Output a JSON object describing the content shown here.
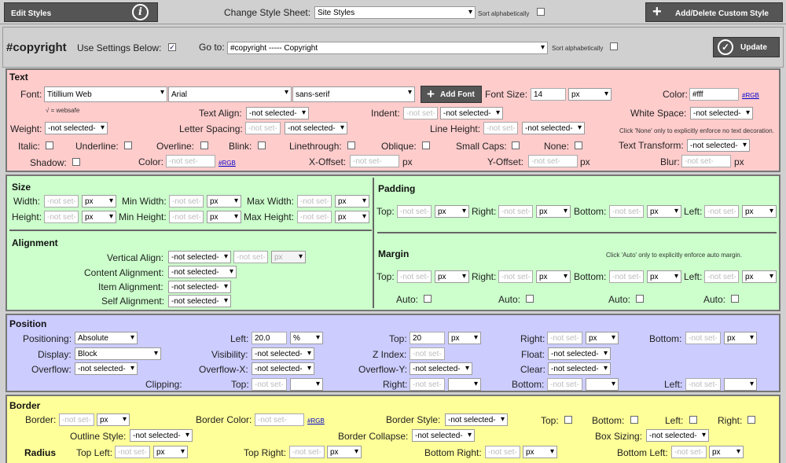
{
  "topbar": {
    "edit_styles": "Edit Styles",
    "change_style_sheet": "Change Style Sheet:",
    "sheet_value": "Site Styles",
    "sort_alpha": "Sort alphabetically",
    "add_delete": "Add/Delete Custom Style"
  },
  "header": {
    "selector": "#copyright",
    "use_settings": "Use Settings Below:",
    "goto": "Go to:",
    "goto_value": "#copyright ----- Copyright",
    "sort_alpha": "Sort alphabetically",
    "update": "Update"
  },
  "text": {
    "title": "Text",
    "font_label": "Font:",
    "font1": "Titillium Web",
    "font2": "Arial",
    "font3": "sans-serif",
    "websafe": "√ = websafe",
    "add_font": "Add Font",
    "font_size_label": "Font Size:",
    "font_size": "14",
    "font_size_unit": "px",
    "color_label": "Color:",
    "color": "#fff",
    "rgb": "#RGB",
    "text_align": "Text Align:",
    "indent": "Indent:",
    "white_space": "White Space:",
    "weight": "Weight:",
    "letter_spacing": "Letter Spacing:",
    "line_height": "Line Height:",
    "none_note": "Click 'None' only to explicitly enforce no text decoration.",
    "italic": "Italic:",
    "underline": "Underline:",
    "overline": "Overline:",
    "blink": "Blink:",
    "linethrough": "Linethrough:",
    "oblique": "Oblique:",
    "small_caps": "Small Caps:",
    "none": "None:",
    "text_transform": "Text Transform:",
    "shadow": "Shadow:",
    "shadow_color": "Color:",
    "x_offset": "X-Offset:",
    "y_offset": "Y-Offset:",
    "blur": "Blur:"
  },
  "common": {
    "not_selected": "-not selected-",
    "not_set": "-not set-",
    "px": "px",
    "rgb": "#RGB"
  },
  "size": {
    "title": "Size",
    "width": "Width:",
    "min_width": "Min Width:",
    "max_width": "Max Width:",
    "height": "Height:",
    "min_height": "Min Height:",
    "max_height": "Max Height:"
  },
  "alignment": {
    "title": "Alignment",
    "vertical": "Vertical Align:",
    "content": "Content Alignment:",
    "item": "Item Alignment:",
    "self": "Self Alignment:"
  },
  "padding": {
    "title": "Padding",
    "top": "Top:",
    "right": "Right:",
    "bottom": "Bottom:",
    "left": "Left:"
  },
  "margin": {
    "title": "Margin",
    "note": "Click 'Auto' only to explicitly enforce auto margin.",
    "top": "Top:",
    "right": "Right:",
    "bottom": "Bottom:",
    "left": "Left:",
    "auto": "Auto:"
  },
  "position": {
    "title": "Position",
    "positioning": "Positioning:",
    "positioning_value": "Absolute",
    "left": "Left:",
    "left_value": "20.0",
    "left_unit": "%",
    "top": "Top:",
    "top_value": "20",
    "right": "Right:",
    "bottom": "Bottom:",
    "display": "Display:",
    "display_value": "Block",
    "visibility": "Visibility:",
    "zindex": "Z Index:",
    "float": "Float:",
    "overflow": "Overflow:",
    "overflow_x": "Overflow-X:",
    "overflow_y": "Overflow-Y:",
    "clear": "Clear:",
    "clipping": "Clipping:",
    "clip_top": "Top:",
    "clip_right": "Right:",
    "clip_bottom": "Bottom:",
    "clip_left": "Left:"
  },
  "border": {
    "title": "Border",
    "border": "Border:",
    "border_color": "Border Color:",
    "border_style": "Border Style:",
    "top": "Top:",
    "bottom": "Bottom:",
    "left": "Left:",
    "right": "Right:",
    "outline_style": "Outline Style:",
    "border_collapse": "Border Collapse:",
    "box_sizing": "Box Sizing:",
    "radius": "Radius",
    "top_left": "Top Left:",
    "top_right": "Top Right:",
    "bottom_right": "Bottom Right:",
    "bottom_left": "Bottom Left:"
  },
  "colors": {
    "text_bg": "#ffcccc",
    "layout_bg": "#ccffcc",
    "position_bg": "#ccccff",
    "border_bg": "#ffff99"
  }
}
